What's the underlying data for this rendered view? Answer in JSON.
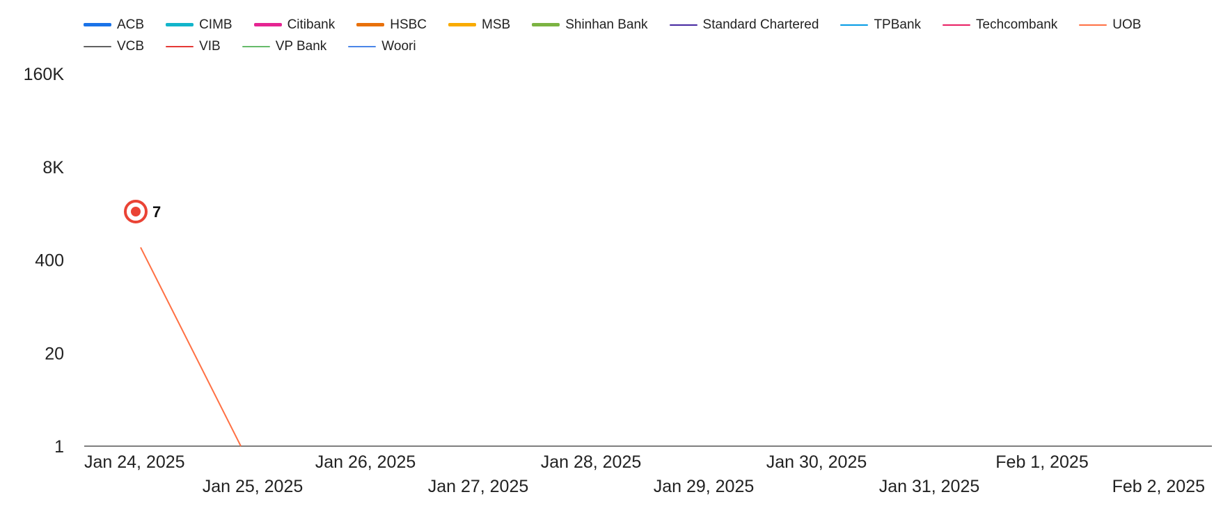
{
  "chart_data": {
    "type": "line",
    "title": "",
    "xlabel": "",
    "ylabel": "",
    "y_scale": "log",
    "y_ticks": [
      "1",
      "20",
      "400",
      "8K",
      "160K"
    ],
    "y_tick_values": [
      1,
      20,
      400,
      8000,
      160000
    ],
    "ylim": [
      1,
      160000
    ],
    "x_ticks": [
      "Jan 24, 2025",
      "Jan 25, 2025",
      "Jan 26, 2025",
      "Jan 27, 2025",
      "Jan 28, 2025",
      "Jan 29, 2025",
      "Jan 30, 2025",
      "Jan 31, 2025",
      "Feb 1, 2025",
      "Feb 2, 2025"
    ],
    "legend_position": "top",
    "series": [
      {
        "name": "ACB",
        "color": "#1a73e8",
        "thick": true,
        "points": []
      },
      {
        "name": "CIMB",
        "color": "#12b5cb",
        "thick": true,
        "points": []
      },
      {
        "name": "Citibank",
        "color": "#e52592",
        "thick": true,
        "points": []
      },
      {
        "name": "HSBC",
        "color": "#e8710a",
        "thick": true,
        "points": []
      },
      {
        "name": "MSB",
        "color": "#f9ab00",
        "thick": true,
        "points": []
      },
      {
        "name": "Shinhan Bank",
        "color": "#7cb342",
        "thick": true,
        "points": []
      },
      {
        "name": "Standard Chartered",
        "color": "#4527a0",
        "thick": false,
        "points": []
      },
      {
        "name": "TPBank",
        "color": "#039be5",
        "thick": false,
        "points": []
      },
      {
        "name": "Techcombank",
        "color": "#e91e63",
        "thick": false,
        "points": []
      },
      {
        "name": "UOB",
        "color": "#ff7043",
        "thick": false,
        "points": [
          {
            "x": "Jan 24, 2025",
            "y": 600
          },
          {
            "x": "Jan 25, 2025",
            "y": 1
          }
        ]
      },
      {
        "name": "VCB",
        "color": "#616161",
        "thick": false,
        "points": []
      },
      {
        "name": "VIB",
        "color": "#e53935",
        "thick": false,
        "points": []
      },
      {
        "name": "VP Bank",
        "color": "#66bb6a",
        "thick": false,
        "points": []
      },
      {
        "name": "Woori",
        "color": "#4a86e8",
        "thick": false,
        "points": []
      }
    ],
    "annotation": {
      "text": "7",
      "marker": "target-icon",
      "color": "#ea4335"
    }
  }
}
